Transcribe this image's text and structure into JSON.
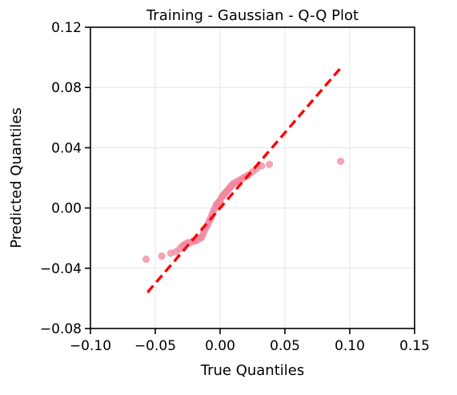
{
  "chart_data": {
    "type": "scatter",
    "title": "Training - Gaussian - Q-Q Plot",
    "xlabel": "True Quantiles",
    "ylabel": "Predicted Quantiles",
    "xlim": [
      -0.1,
      0.15
    ],
    "ylim": [
      -0.08,
      0.12
    ],
    "x_ticks": [
      -0.1,
      -0.05,
      0.0,
      0.05,
      0.1,
      0.15
    ],
    "x_tick_labels": [
      "−0.10",
      "−0.05",
      "0.00",
      "0.05",
      "0.10",
      "0.15"
    ],
    "y_ticks": [
      -0.08,
      -0.04,
      0.0,
      0.04,
      0.08,
      0.12
    ],
    "y_tick_labels": [
      "−0.08",
      "−0.04",
      "0.00",
      "0.04",
      "0.08",
      "0.12"
    ],
    "grid": true,
    "point_color": "#f0859f",
    "line_color": "#ff0000",
    "reference_line": {
      "style": "dashed",
      "x": [
        -0.056,
        0.094
      ],
      "y": [
        -0.056,
        0.094
      ]
    },
    "series": [
      {
        "x": [
          -0.057,
          -0.045,
          -0.038,
          -0.034,
          -0.031,
          -0.029,
          -0.027,
          -0.025,
          -0.023,
          -0.021,
          -0.019,
          -0.017,
          -0.015,
          -0.014,
          -0.013,
          -0.012,
          -0.011,
          -0.01,
          -0.009,
          -0.008,
          -0.007,
          -0.006,
          -0.005,
          -0.004,
          -0.003,
          -0.002,
          -0.001,
          0.0,
          0.001,
          0.002,
          0.003,
          0.004,
          0.005,
          0.006,
          0.007,
          0.008,
          0.009,
          0.01,
          0.012,
          0.014,
          0.016,
          0.018,
          0.02,
          0.022,
          0.025,
          0.028,
          0.032,
          0.038,
          0.093
        ],
        "y": [
          -0.034,
          -0.032,
          -0.03,
          -0.029,
          -0.027,
          -0.025,
          -0.024,
          -0.023,
          -0.023,
          -0.022,
          -0.022,
          -0.021,
          -0.02,
          -0.019,
          -0.017,
          -0.015,
          -0.013,
          -0.012,
          -0.01,
          -0.008,
          -0.006,
          -0.004,
          -0.002,
          0.0,
          0.002,
          0.003,
          0.004,
          0.005,
          0.007,
          0.008,
          0.009,
          0.01,
          0.011,
          0.012,
          0.013,
          0.014,
          0.015,
          0.016,
          0.017,
          0.018,
          0.019,
          0.02,
          0.021,
          0.022,
          0.024,
          0.026,
          0.028,
          0.029,
          0.031
        ]
      }
    ]
  }
}
